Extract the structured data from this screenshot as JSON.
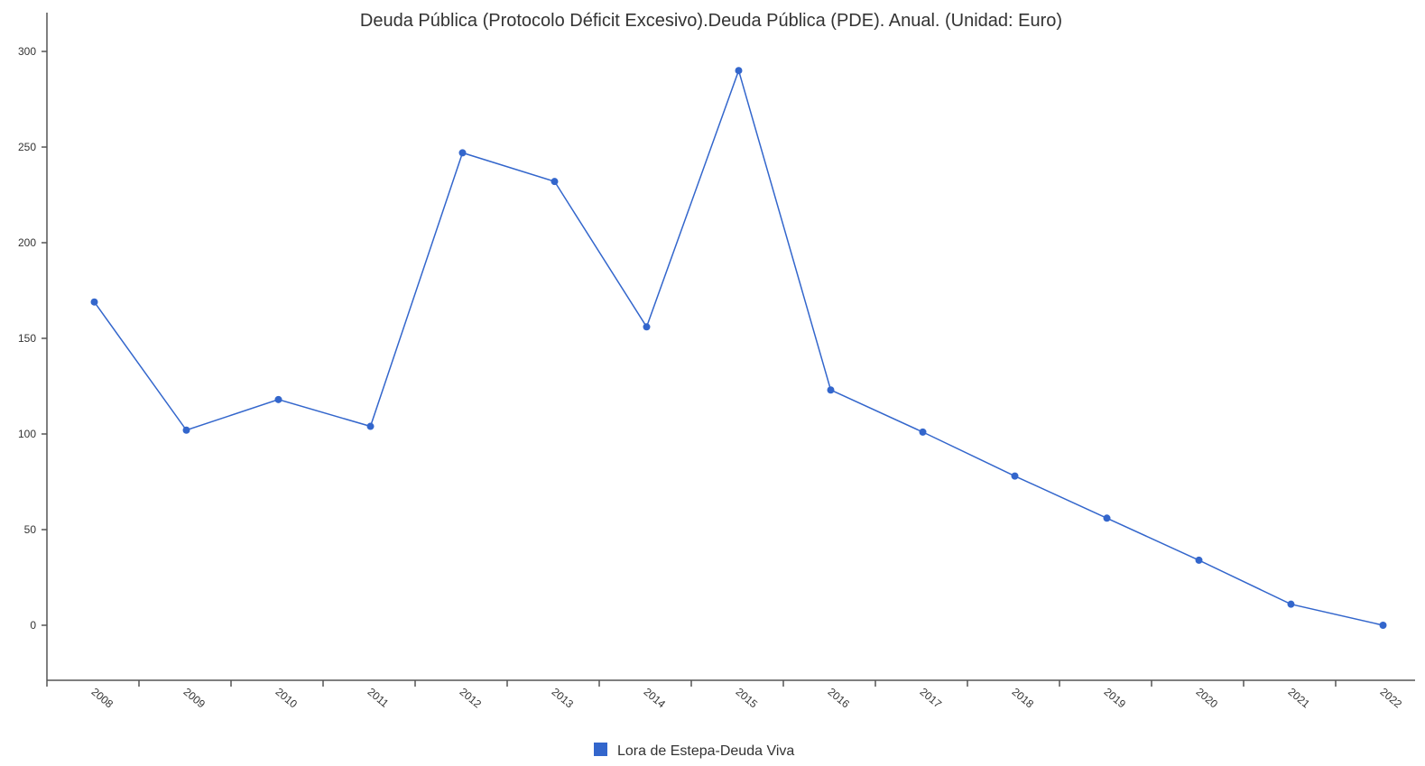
{
  "chart_data": {
    "type": "line",
    "title": "Deuda Pública (Protocolo Déficit Excesivo).Deuda Pública (PDE). Anual. (Unidad: Euro)",
    "xlabel": "",
    "ylabel": "",
    "categories": [
      "2008",
      "2009",
      "2010",
      "2011",
      "2012",
      "2013",
      "2014",
      "2015",
      "2016",
      "2017",
      "2018",
      "2019",
      "2020",
      "2021",
      "2022"
    ],
    "series": [
      {
        "name": "Lora de Estepa-Deuda Viva",
        "color": "#3366cc",
        "values": [
          169,
          102,
          118,
          104,
          247,
          232,
          156,
          290,
          123,
          101,
          78,
          56,
          34,
          11,
          0
        ]
      }
    ],
    "ylim": [
      -29,
      320
    ],
    "yticks": [
      0,
      50,
      100,
      150,
      200,
      250,
      300
    ],
    "grid": false,
    "legend_position": "bottom"
  }
}
